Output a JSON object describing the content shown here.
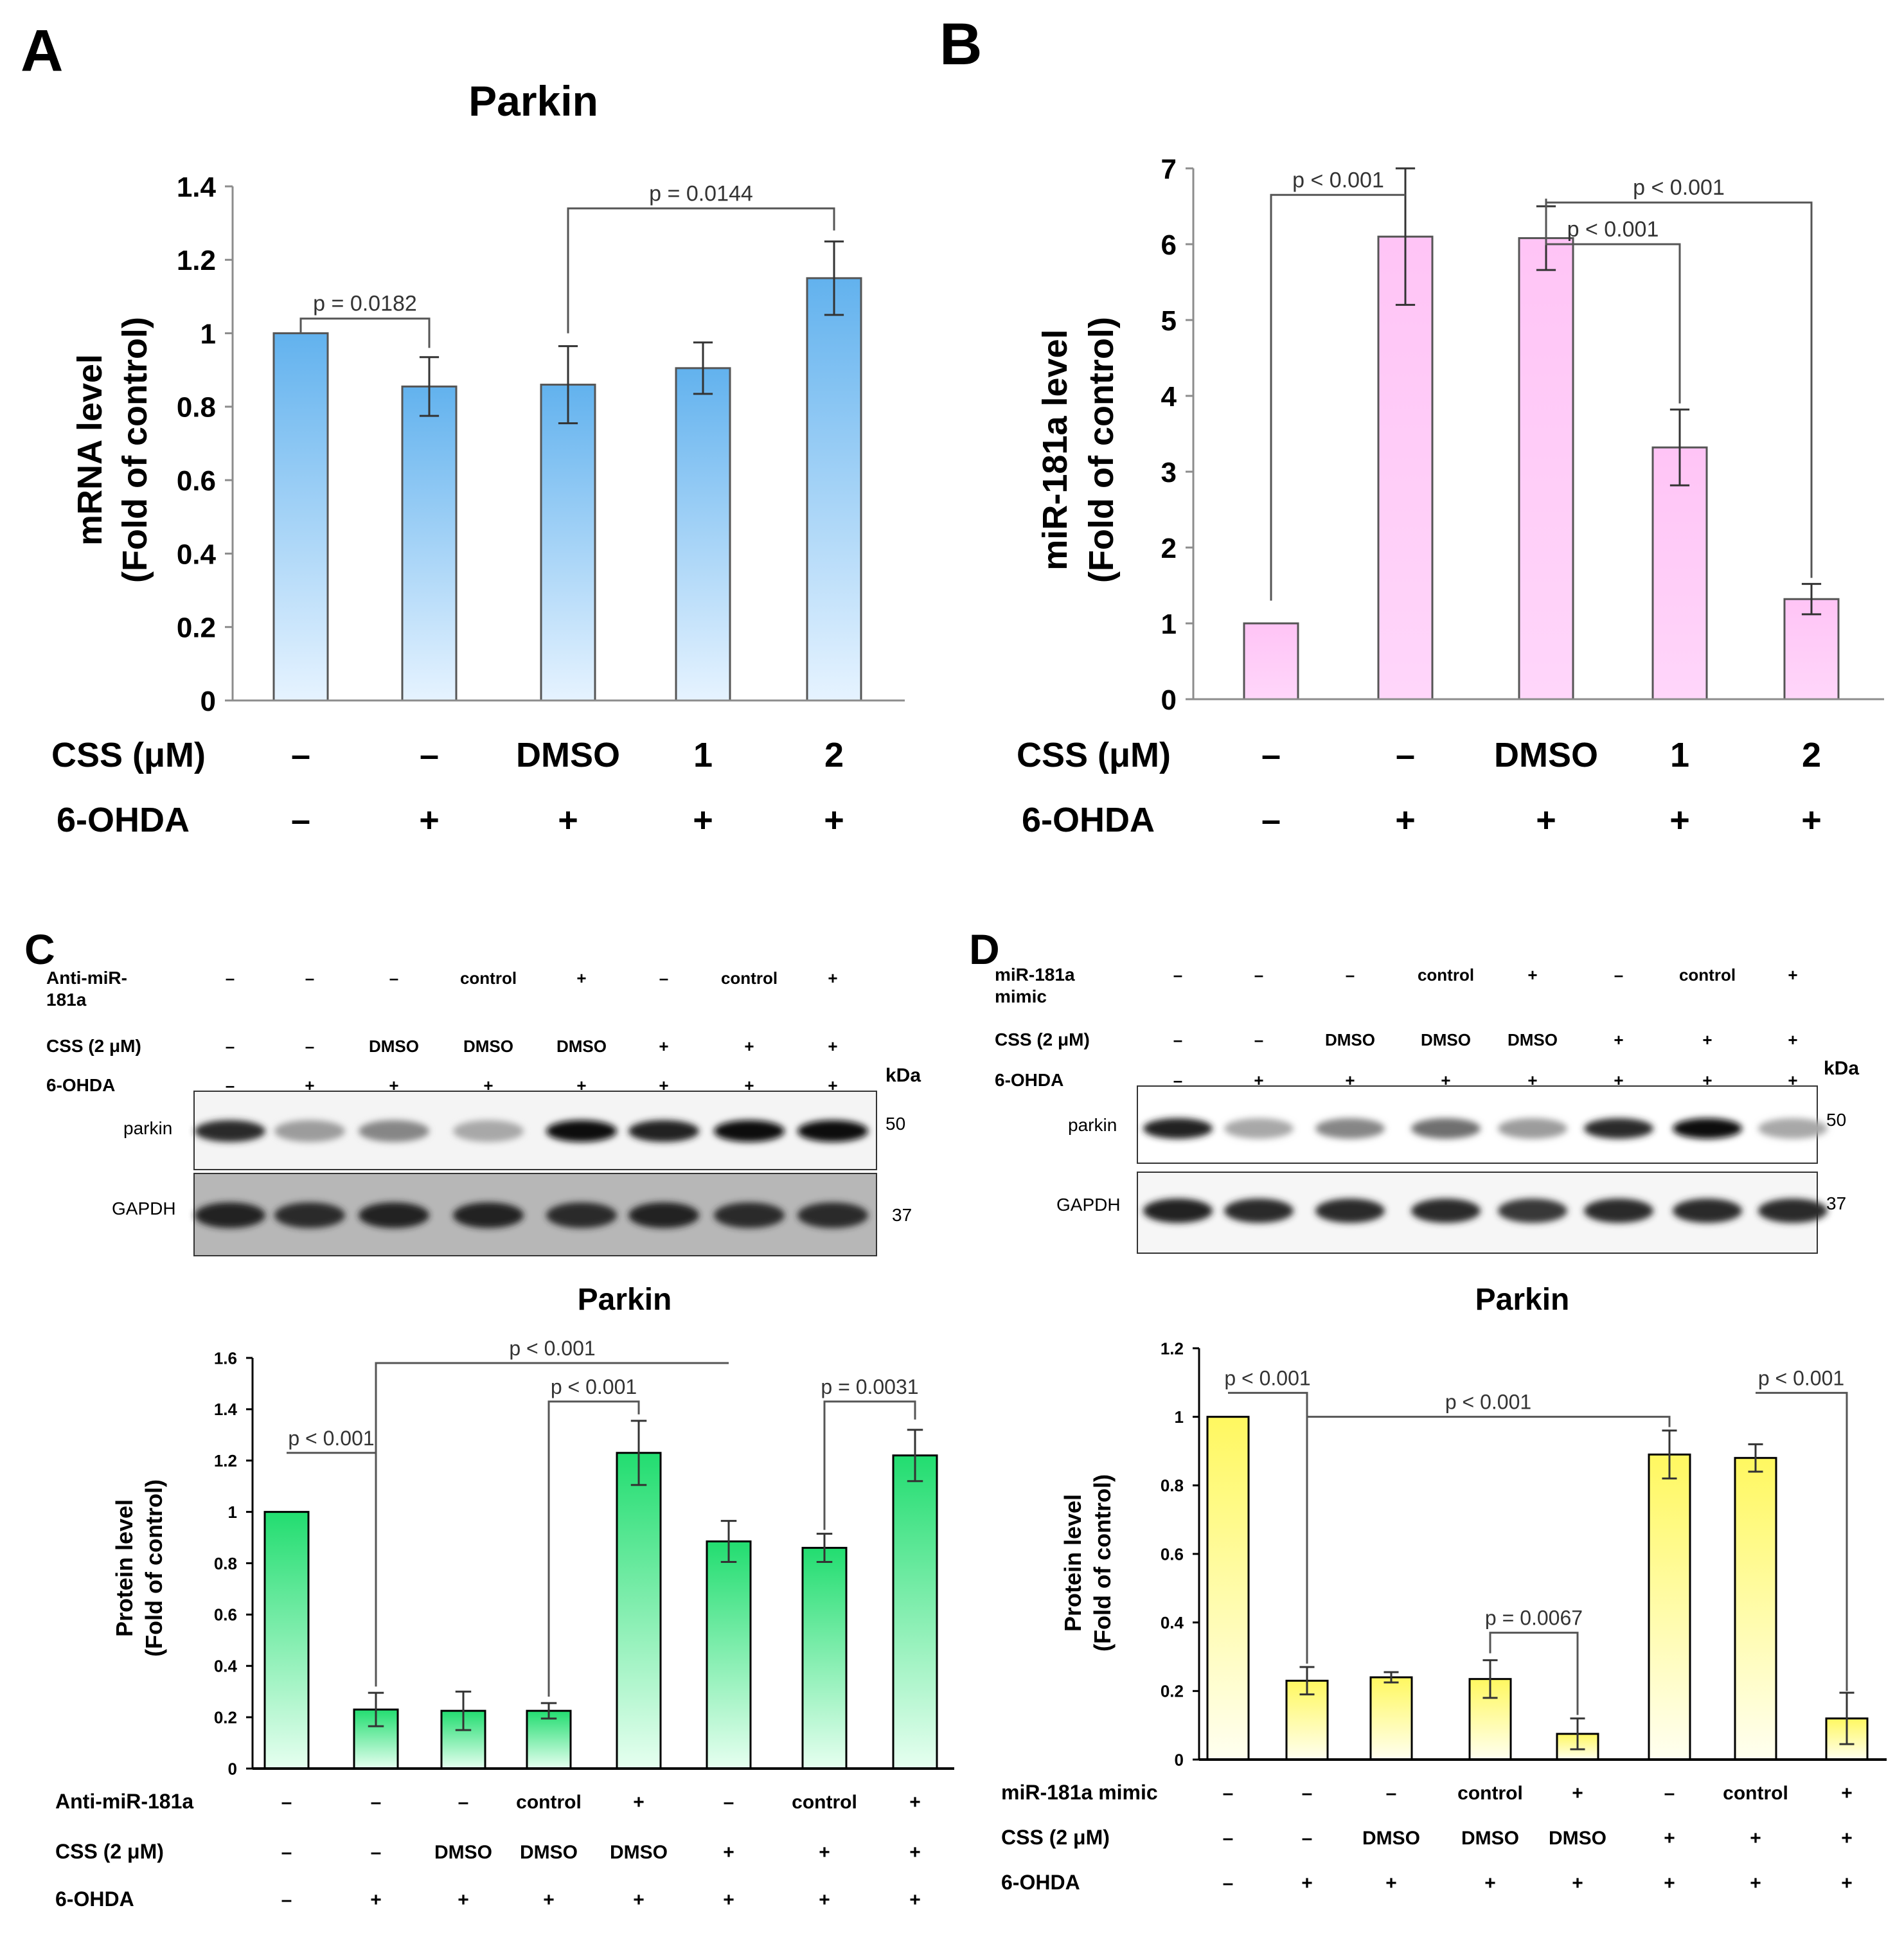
{
  "figure": {
    "panel_labels": [
      "A",
      "B",
      "C",
      "D"
    ],
    "colors": {
      "blue": "#6cb8f0",
      "pink": "#ffc8f6",
      "green": "#33e07a",
      "yellow": "#fffa66"
    }
  },
  "chart_data": [
    {
      "id": "A",
      "type": "bar",
      "title": "Parkin",
      "ylabel": [
        "mRNA level",
        "(Fold of control)"
      ],
      "ylim": [
        0,
        1.4
      ],
      "yticks": [
        0,
        0.2,
        0.4,
        0.6,
        0.8,
        1,
        1.2,
        1.4
      ],
      "ytick_labels": [
        "0",
        "0.2",
        "0.4",
        "0.6",
        "0.8",
        "1",
        "1.2",
        "1.4"
      ],
      "values": [
        1.0,
        0.855,
        0.86,
        0.905,
        1.15
      ],
      "errors": [
        0,
        0.08,
        0.105,
        0.07,
        0.1
      ],
      "color": "blue",
      "conditions": [
        {
          "label": "CSS (μM)",
          "values": [
            "–",
            "–",
            "DMSO",
            "1",
            "2"
          ]
        },
        {
          "label": "6-OHDA",
          "values": [
            "–",
            "+",
            "+",
            "+",
            "+"
          ]
        }
      ],
      "comparisons": [
        {
          "from": 0,
          "to": 1,
          "y": 1.04,
          "text": "p = 0.0182",
          "from_y": 1.0,
          "to_y": 0.96
        },
        {
          "from": 2,
          "to": 4,
          "y": 1.34,
          "text": "p = 0.0144",
          "from_y": 1.0,
          "to_y": 1.28
        }
      ]
    },
    {
      "id": "B",
      "type": "bar",
      "title": "",
      "ylabel": [
        "miR-181a level",
        "(Fold of control)"
      ],
      "ylim": [
        0,
        7
      ],
      "yticks": [
        0,
        1,
        2,
        3,
        4,
        5,
        6,
        7
      ],
      "ytick_labels": [
        "0",
        "1",
        "2",
        "3",
        "4",
        "5",
        "6",
        "7"
      ],
      "values": [
        1.0,
        6.1,
        6.08,
        3.32,
        1.32
      ],
      "errors": [
        0,
        0.9,
        0.42,
        0.5,
        0.2
      ],
      "color": "pink",
      "conditions": [
        {
          "label": "CSS (μM)",
          "values": [
            "–",
            "–",
            "DMSO",
            "1",
            "2"
          ]
        },
        {
          "label": "6-OHDA",
          "values": [
            "–",
            "+",
            "+",
            "+",
            "+"
          ]
        }
      ],
      "comparisons": [
        {
          "from": 0,
          "to": 1,
          "y": 6.65,
          "text": "p < 0.001",
          "from_y": 1.3,
          "to_y": 6.65
        },
        {
          "from": 2,
          "to": 3,
          "y": 6.0,
          "text": "p < 0.001",
          "from_y": 6.6,
          "to_y": 3.9
        },
        {
          "from": 2,
          "to": 4,
          "y": 6.55,
          "text": "p < 0.001",
          "from_y": 6.6,
          "to_y": 1.6
        }
      ]
    },
    {
      "id": "C",
      "type": "bar",
      "title": "Parkin",
      "ylabel": [
        "Protein level",
        "(Fold of control)"
      ],
      "ylim": [
        0,
        1.6
      ],
      "yticks": [
        0,
        0.2,
        0.4,
        0.6,
        0.8,
        1,
        1.2,
        1.4,
        1.6
      ],
      "ytick_labels": [
        "0",
        "0.2",
        "0.4",
        "0.6",
        "0.8",
        "1",
        "1.2",
        "1.4",
        "1.6"
      ],
      "values": [
        1.0,
        0.23,
        0.225,
        0.225,
        1.23,
        0.885,
        0.86,
        1.22
      ],
      "errors": [
        0,
        0.065,
        0.075,
        0.03,
        0.125,
        0.08,
        0.055,
        0.1
      ],
      "color": "green",
      "conditions": [
        {
          "label": "Anti-miR-181a",
          "values": [
            "–",
            "–",
            "–",
            "control",
            "+",
            "–",
            "control",
            "+"
          ]
        },
        {
          "label": "CSS (2 μM)",
          "values": [
            "–",
            "–",
            "DMSO",
            "DMSO",
            "DMSO",
            "+",
            "+",
            "+"
          ]
        },
        {
          "label": "6-OHDA",
          "values": [
            "–",
            "+",
            "+",
            "+",
            "+",
            "+",
            "+",
            "+"
          ]
        }
      ],
      "comparisons": [
        {
          "from": 0,
          "to": 1,
          "y": 1.23,
          "text": "p < 0.001",
          "from_y": 1.23,
          "to_y": 0.32
        },
        {
          "from": 1,
          "to": 5,
          "y": 1.58,
          "text": "p < 0.001",
          "from_y": 0.32,
          "to_y": 1.58
        },
        {
          "from": 3,
          "to": 4,
          "y": 1.43,
          "text": "p < 0.001",
          "from_y": 0.28,
          "to_y": 1.38
        },
        {
          "from": 6,
          "to": 7,
          "y": 1.43,
          "text": "p = 0.0031",
          "from_y": 0.93,
          "to_y": 1.36
        }
      ]
    },
    {
      "id": "D",
      "type": "bar",
      "title": "Parkin",
      "ylabel": [
        "Protein level",
        "(Fold of control)"
      ],
      "ylim": [
        0,
        1.2
      ],
      "yticks": [
        0,
        0.2,
        0.4,
        0.6,
        0.8,
        1,
        1.2
      ],
      "ytick_labels": [
        "0",
        "0.2",
        "0.4",
        "0.6",
        "0.8",
        "1",
        "1.2"
      ],
      "values": [
        1.0,
        0.23,
        0.24,
        0.235,
        0.075,
        0.89,
        0.88,
        0.12
      ],
      "errors": [
        0,
        0.04,
        0.015,
        0.055,
        0.045,
        0.07,
        0.04,
        0.075
      ],
      "color": "yellow",
      "conditions": [
        {
          "label": "miR-181a mimic",
          "values": [
            "–",
            "–",
            "–",
            "control",
            "+",
            "–",
            "control",
            "+"
          ]
        },
        {
          "label": "CSS (2 μM)",
          "values": [
            "–",
            "–",
            "DMSO",
            "DMSO",
            "DMSO",
            "+",
            "+",
            "+"
          ]
        },
        {
          "label": "6-OHDA",
          "values": [
            "–",
            "+",
            "+",
            "+",
            "+",
            "+",
            "+",
            "+"
          ]
        }
      ],
      "comparisons": [
        {
          "from": 0,
          "to": 1,
          "y": 1.07,
          "text": "p < 0.001",
          "from_y": 1.07,
          "to_y": 0.28
        },
        {
          "from": 1,
          "to": 5,
          "y": 1.0,
          "text": "p < 0.001",
          "from_y": 0.28,
          "to_y": 0.97
        },
        {
          "from": 3,
          "to": 4,
          "y": 0.37,
          "text": "p = 0.0067",
          "from_y": 0.31,
          "to_y": 0.13
        },
        {
          "from": 6,
          "to": 7,
          "y": 1.07,
          "text": "p < 0.001",
          "from_y": 1.07,
          "to_y": 0.2
        }
      ]
    }
  ],
  "blots": [
    {
      "id": "C",
      "conditions": [
        {
          "label": [
            "Anti-miR-",
            "181a"
          ],
          "values": [
            "–",
            "–",
            "–",
            "control",
            "+",
            "–",
            "control",
            "+"
          ]
        },
        {
          "label": [
            "CSS (2 μM)"
          ],
          "values": [
            "–",
            "–",
            "DMSO",
            "DMSO",
            "DMSO",
            "+",
            "+",
            "+"
          ]
        },
        {
          "label": [
            "6-OHDA"
          ],
          "values": [
            "–",
            "+",
            "+",
            "+",
            "+",
            "+",
            "+",
            "+"
          ]
        }
      ],
      "kda_label": "kDa",
      "rows": [
        {
          "label": "parkin",
          "kda": "50",
          "intensity": [
            0.85,
            0.35,
            0.45,
            0.3,
            1.0,
            0.9,
            1.0,
            1.0
          ]
        },
        {
          "label": "GAPDH",
          "kda": "37",
          "intensity": [
            0.9,
            0.85,
            0.9,
            0.9,
            0.85,
            0.9,
            0.85,
            0.85
          ]
        }
      ]
    },
    {
      "id": "D",
      "conditions": [
        {
          "label": [
            "miR-181a",
            "mimic"
          ],
          "values": [
            "–",
            "–",
            "–",
            "control",
            "+",
            "–",
            "control",
            "+"
          ]
        },
        {
          "label": [
            "CSS (2 μM)"
          ],
          "values": [
            "–",
            "–",
            "DMSO",
            "DMSO",
            "DMSO",
            "+",
            "+",
            "+"
          ]
        },
        {
          "label": [
            "6-OHDA"
          ],
          "values": [
            "–",
            "+",
            "+",
            "+",
            "+",
            "+",
            "+",
            "+"
          ]
        }
      ],
      "kda_label": "kDa",
      "rows": [
        {
          "label": "parkin",
          "kda": "50",
          "intensity": [
            0.9,
            0.3,
            0.45,
            0.55,
            0.35,
            0.85,
            1.0,
            0.3
          ]
        },
        {
          "label": "GAPDH",
          "kda": "37",
          "intensity": [
            0.9,
            0.85,
            0.85,
            0.85,
            0.8,
            0.85,
            0.85,
            0.85
          ]
        }
      ]
    }
  ]
}
